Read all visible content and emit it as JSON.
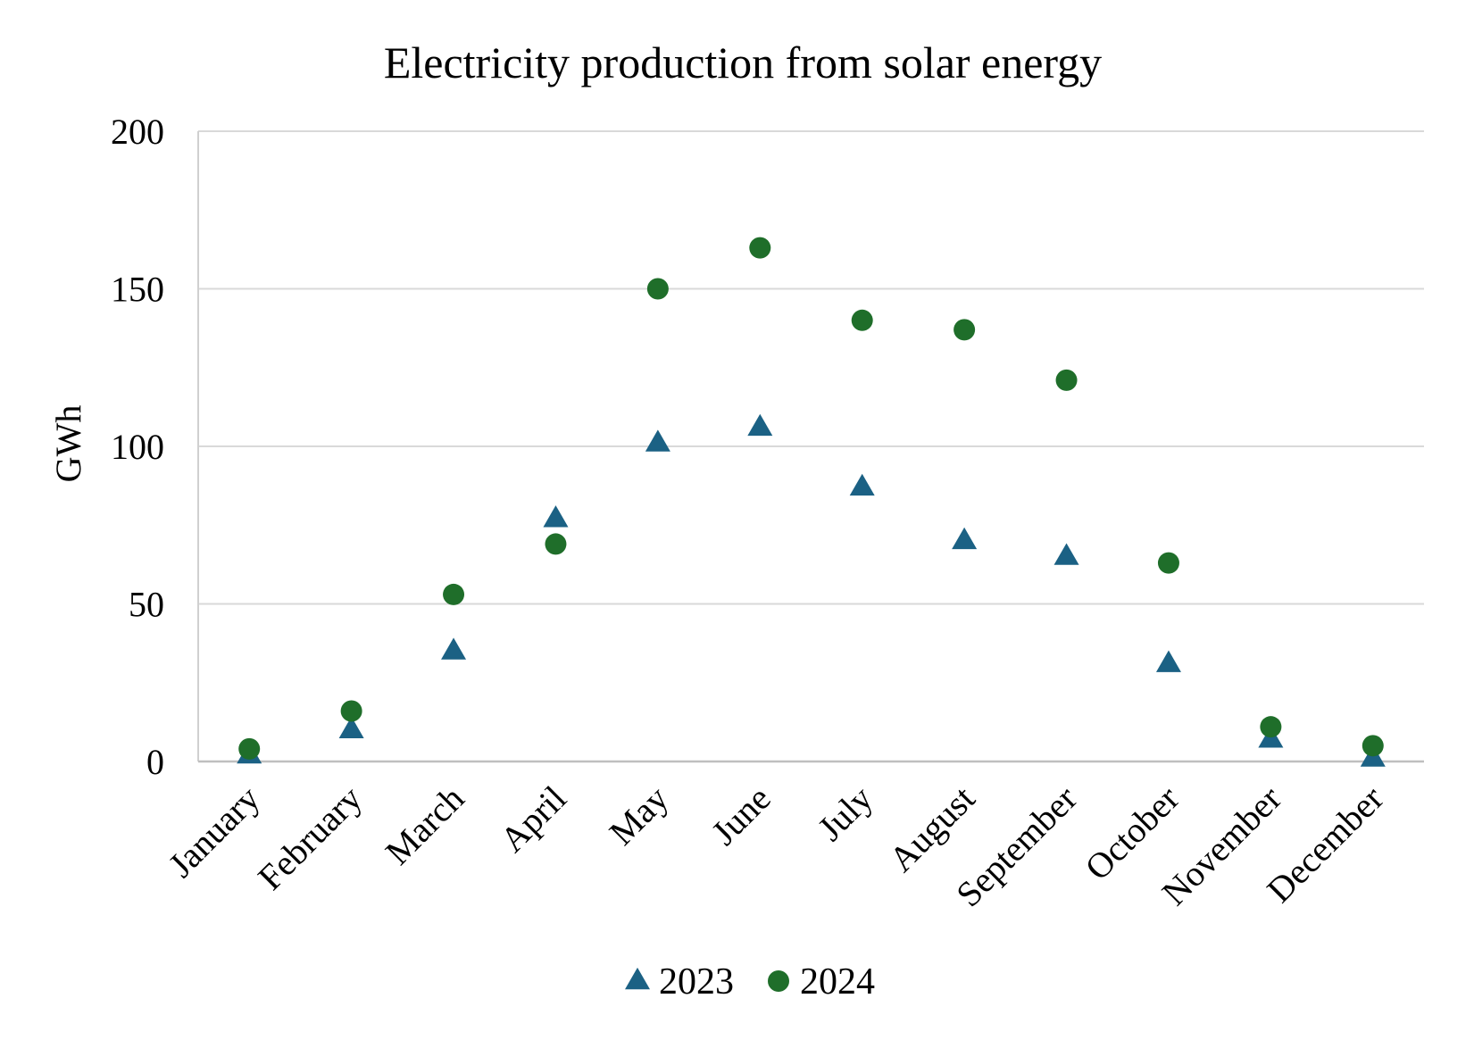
{
  "chart_data": {
    "type": "scatter",
    "title": "Electricity production from solar energy",
    "xlabel": "",
    "ylabel": "GWh",
    "categories": [
      "January",
      "February",
      "March",
      "April",
      "May",
      "June",
      "July",
      "August",
      "September",
      "October",
      "November",
      "December"
    ],
    "ylim": [
      0,
      200
    ],
    "yticks": [
      "0",
      "50",
      "100",
      "150",
      "200"
    ],
    "grid": "horizontal",
    "legend_position": "bottom",
    "series": [
      {
        "name": "2023",
        "marker": "triangle",
        "color": "#1b6184",
        "values": [
          2,
          10,
          35,
          77,
          101,
          106,
          87,
          70,
          65,
          31,
          7,
          1
        ]
      },
      {
        "name": "2024",
        "marker": "circle",
        "color": "#1f6e2a",
        "values": [
          4,
          16,
          53,
          69,
          150,
          163,
          140,
          137,
          121,
          63,
          11,
          5
        ]
      }
    ]
  }
}
